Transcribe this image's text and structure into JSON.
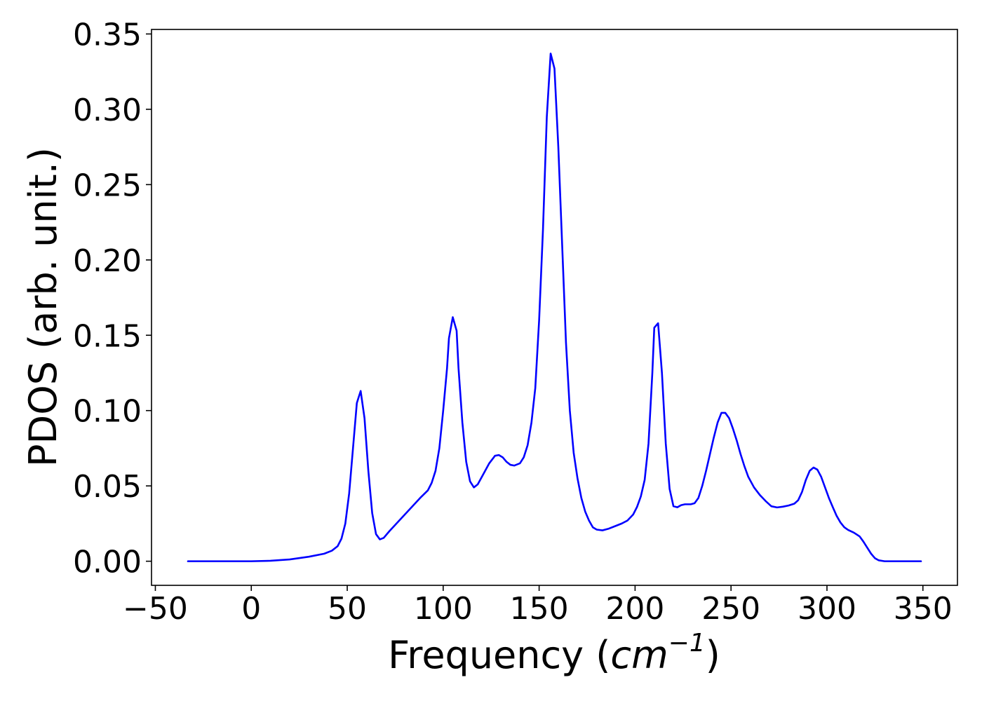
{
  "chart_data": {
    "type": "line",
    "title": "",
    "xlabel": "Frequency (",
    "xlabel_math_base": "cm",
    "xlabel_math_exp": "−1",
    "xlabel_close": ")",
    "ylabel": "PDOS (arb. unit.)",
    "xlim": [
      -52,
      368
    ],
    "ylim": [
      -0.016,
      0.353
    ],
    "x_ticks": [
      -50,
      0,
      50,
      100,
      150,
      200,
      250,
      300,
      350
    ],
    "x_tick_labels": [
      "−50",
      "0",
      "50",
      "100",
      "150",
      "200",
      "250",
      "300",
      "350"
    ],
    "y_ticks": [
      0.0,
      0.05,
      0.1,
      0.15,
      0.2,
      0.25,
      0.3,
      0.35
    ],
    "y_tick_labels": [
      "0.00",
      "0.05",
      "0.10",
      "0.15",
      "0.20",
      "0.25",
      "0.30",
      "0.35"
    ],
    "grid": false,
    "legend": "none",
    "line_color": "#0000ff",
    "series": [
      {
        "points": [
          [
            -33,
            0.0
          ],
          [
            0,
            0.0
          ],
          [
            10,
            0.0003
          ],
          [
            20,
            0.0012
          ],
          [
            30,
            0.003
          ],
          [
            38,
            0.005
          ],
          [
            42,
            0.007
          ],
          [
            45,
            0.01
          ],
          [
            47,
            0.015
          ],
          [
            49,
            0.025
          ],
          [
            51,
            0.045
          ],
          [
            53,
            0.075
          ],
          [
            55,
            0.105
          ],
          [
            57,
            0.113
          ],
          [
            59,
            0.095
          ],
          [
            61,
            0.06
          ],
          [
            63,
            0.032
          ],
          [
            65,
            0.018
          ],
          [
            67,
            0.0145
          ],
          [
            69,
            0.0155
          ],
          [
            72,
            0.02
          ],
          [
            80,
            0.031
          ],
          [
            88,
            0.042
          ],
          [
            92,
            0.047
          ],
          [
            94,
            0.052
          ],
          [
            96,
            0.06
          ],
          [
            98,
            0.075
          ],
          [
            100,
            0.1
          ],
          [
            102,
            0.128
          ],
          [
            103,
            0.148
          ],
          [
            105,
            0.162
          ],
          [
            107,
            0.153
          ],
          [
            108,
            0.128
          ],
          [
            110,
            0.092
          ],
          [
            112,
            0.066
          ],
          [
            114,
            0.053
          ],
          [
            116,
            0.049
          ],
          [
            118,
            0.051
          ],
          [
            121,
            0.058
          ],
          [
            124,
            0.065
          ],
          [
            127,
            0.07
          ],
          [
            129,
            0.0705
          ],
          [
            131,
            0.069
          ],
          [
            133,
            0.066
          ],
          [
            135,
            0.064
          ],
          [
            137,
            0.0635
          ],
          [
            140,
            0.065
          ],
          [
            142,
            0.069
          ],
          [
            144,
            0.077
          ],
          [
            146,
            0.092
          ],
          [
            148,
            0.115
          ],
          [
            150,
            0.16
          ],
          [
            152,
            0.22
          ],
          [
            154,
            0.295
          ],
          [
            156,
            0.337
          ],
          [
            158,
            0.327
          ],
          [
            160,
            0.275
          ],
          [
            162,
            0.21
          ],
          [
            164,
            0.145
          ],
          [
            166,
            0.1
          ],
          [
            168,
            0.072
          ],
          [
            170,
            0.055
          ],
          [
            172,
            0.042
          ],
          [
            174,
            0.033
          ],
          [
            176,
            0.027
          ],
          [
            178,
            0.0225
          ],
          [
            180,
            0.021
          ],
          [
            183,
            0.0205
          ],
          [
            186,
            0.0215
          ],
          [
            190,
            0.0235
          ],
          [
            193,
            0.025
          ],
          [
            196,
            0.027
          ],
          [
            199,
            0.031
          ],
          [
            201,
            0.036
          ],
          [
            203,
            0.043
          ],
          [
            205,
            0.054
          ],
          [
            207,
            0.078
          ],
          [
            209,
            0.125
          ],
          [
            210,
            0.155
          ],
          [
            212,
            0.158
          ],
          [
            214,
            0.125
          ],
          [
            216,
            0.078
          ],
          [
            218,
            0.048
          ],
          [
            220,
            0.0365
          ],
          [
            222,
            0.0358
          ],
          [
            224,
            0.0372
          ],
          [
            226,
            0.0378
          ],
          [
            229,
            0.0378
          ],
          [
            231,
            0.0385
          ],
          [
            233,
            0.042
          ],
          [
            235,
            0.05
          ],
          [
            237,
            0.06
          ],
          [
            239,
            0.071
          ],
          [
            241,
            0.082
          ],
          [
            243,
            0.092
          ],
          [
            245,
            0.0985
          ],
          [
            247,
            0.0985
          ],
          [
            249,
            0.095
          ],
          [
            251,
            0.088
          ],
          [
            253,
            0.08
          ],
          [
            255,
            0.071
          ],
          [
            257,
            0.063
          ],
          [
            259,
            0.056
          ],
          [
            262,
            0.049
          ],
          [
            265,
            0.044
          ],
          [
            268,
            0.04
          ],
          [
            271,
            0.0365
          ],
          [
            274,
            0.0357
          ],
          [
            277,
            0.0362
          ],
          [
            280,
            0.037
          ],
          [
            283,
            0.0382
          ],
          [
            285,
            0.0405
          ],
          [
            287,
            0.046
          ],
          [
            289,
            0.054
          ],
          [
            291,
            0.06
          ],
          [
            293,
            0.0622
          ],
          [
            295,
            0.0608
          ],
          [
            297,
            0.056
          ],
          [
            299,
            0.049
          ],
          [
            301,
            0.042
          ],
          [
            303,
            0.036
          ],
          [
            305,
            0.0302
          ],
          [
            307,
            0.0258
          ],
          [
            309,
            0.0226
          ],
          [
            311,
            0.0208
          ],
          [
            314,
            0.019
          ],
          [
            317,
            0.0165
          ],
          [
            319,
            0.013
          ],
          [
            321,
            0.009
          ],
          [
            323,
            0.005
          ],
          [
            325,
            0.002
          ],
          [
            327,
            0.0006
          ],
          [
            330,
            0.0
          ],
          [
            349,
            0.0
          ]
        ]
      }
    ]
  }
}
